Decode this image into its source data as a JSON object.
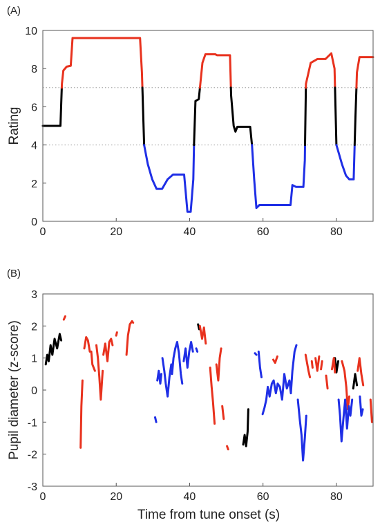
{
  "chart_data": [
    {
      "panel_label": "(A)",
      "type": "line",
      "xlabel": "",
      "ylabel": "Rating",
      "xlim": [
        0,
        90
      ],
      "ylim": [
        0,
        10
      ],
      "xticks": [
        0,
        20,
        40,
        60,
        80
      ],
      "yticks": [
        0,
        2,
        4,
        6,
        8,
        10
      ],
      "reference_lines": [
        7,
        4
      ],
      "reference_line_style": "dotted",
      "line_points": [
        [
          0,
          5
        ],
        [
          4.8,
          5
        ],
        [
          5.2,
          7.2
        ],
        [
          5.6,
          7.9
        ],
        [
          6.5,
          8.1
        ],
        [
          7.6,
          8.15
        ],
        [
          8.1,
          9.6
        ],
        [
          26.5,
          9.6
        ],
        [
          27.0,
          7.8
        ],
        [
          27.6,
          4.0
        ],
        [
          28.6,
          3.0
        ],
        [
          29.8,
          2.2
        ],
        [
          31,
          1.7
        ],
        [
          32.5,
          1.7
        ],
        [
          34,
          2.2
        ],
        [
          35.5,
          2.45
        ],
        [
          38.5,
          2.45
        ],
        [
          39,
          1.4
        ],
        [
          39.4,
          0.5
        ],
        [
          40.3,
          0.5
        ],
        [
          41,
          2.2
        ],
        [
          41.2,
          4.0
        ],
        [
          41.6,
          6.3
        ],
        [
          42.5,
          6.4
        ],
        [
          43.5,
          8.3
        ],
        [
          44.3,
          8.75
        ],
        [
          47,
          8.75
        ],
        [
          47.5,
          8.7
        ],
        [
          51,
          8.7
        ],
        [
          51.3,
          6.6
        ],
        [
          52,
          5.0
        ],
        [
          52.5,
          4.7
        ],
        [
          53,
          4.95
        ],
        [
          56.5,
          4.95
        ],
        [
          57,
          4.0
        ],
        [
          57.6,
          2.2
        ],
        [
          58.2,
          0.7
        ],
        [
          59,
          0.85
        ],
        [
          67.5,
          0.85
        ],
        [
          68,
          1.9
        ],
        [
          69,
          1.8
        ],
        [
          71,
          1.8
        ],
        [
          71.4,
          3.2
        ],
        [
          71.7,
          7.2
        ],
        [
          73,
          8.3
        ],
        [
          74.8,
          8.5
        ],
        [
          77,
          8.5
        ],
        [
          78.6,
          8.8
        ],
        [
          79.5,
          8.0
        ],
        [
          80,
          4.0
        ],
        [
          81.5,
          3.0
        ],
        [
          82.6,
          2.4
        ],
        [
          83.5,
          2.2
        ],
        [
          84.7,
          2.2
        ],
        [
          85.2,
          5.5
        ],
        [
          85.6,
          7.8
        ],
        [
          86.3,
          8.6
        ],
        [
          90,
          8.6
        ]
      ],
      "color_thresholds": {
        "high": 7,
        "low": 4
      },
      "series": [
        {
          "band": "high",
          "color": "#e8321e"
        },
        {
          "band": "middle",
          "color": "#000000"
        },
        {
          "band": "low",
          "color": "#1f2fe6"
        }
      ]
    },
    {
      "panel_label": "(B)",
      "type": "line",
      "xlabel": "Time from tune onset (s)",
      "ylabel": "Pupil diameter (z-score)",
      "xlim": [
        0,
        90
      ],
      "ylim": [
        -3,
        3
      ],
      "xticks": [
        0,
        20,
        40,
        60,
        80
      ],
      "yticks": [
        -3,
        -2,
        -1,
        0,
        1,
        2,
        3
      ],
      "series": [
        {
          "color": "#000000",
          "segments": [
            [
              [
                0.8,
                0.8
              ],
              [
                1.2,
                1.1
              ],
              [
                1.6,
                0.9
              ],
              [
                2.1,
                1.4
              ],
              [
                2.6,
                1.1
              ],
              [
                3.2,
                1.6
              ],
              [
                3.9,
                1.3
              ],
              [
                4.6,
                1.75
              ],
              [
                5.0,
                1.55
              ]
            ],
            [
              [
                42.3,
                2.05
              ],
              [
                42.6,
                1.9
              ]
            ],
            [
              [
                54.6,
                -1.7
              ],
              [
                55.0,
                -1.4
              ],
              [
                55.4,
                -1.75
              ],
              [
                55.8,
                -1.3
              ],
              [
                56.0,
                -0.6
              ]
            ],
            [
              [
                79.2,
                0.8
              ],
              [
                79.6,
                1.0
              ],
              [
                80.0,
                0.55
              ],
              [
                80.5,
                0.9
              ]
            ],
            [
              [
                84.6,
                0.05
              ],
              [
                85.1,
                0.5
              ],
              [
                85.6,
                0.15
              ]
            ]
          ]
        },
        {
          "color": "#e8321e",
          "segments": [
            [
              [
                5.7,
                2.2
              ],
              [
                6.1,
                2.3
              ]
            ],
            [
              [
                10.3,
                -1.8
              ],
              [
                10.5,
                -0.5
              ],
              [
                10.8,
                0.3
              ]
            ],
            [
              [
                11.3,
                1.3
              ],
              [
                11.8,
                1.65
              ],
              [
                12.3,
                1.55
              ],
              [
                12.8,
                1.2
              ]
            ],
            [
              [
                13.2,
                1.2
              ],
              [
                13.5,
                0.8
              ],
              [
                14.2,
                0.6
              ]
            ],
            [
              [
                14.6,
                1.4
              ],
              [
                15.0,
                1.0
              ],
              [
                15.4,
                0.4
              ],
              [
                15.8,
                -0.3
              ],
              [
                16.3,
                0.6
              ]
            ],
            [
              [
                16.5,
                1.1
              ],
              [
                17.0,
                1.45
              ],
              [
                17.6,
                0.9
              ],
              [
                18.1,
                1.5
              ],
              [
                18.6,
                1.6
              ],
              [
                19.0,
                1.4
              ]
            ],
            [
              [
                20.0,
                1.7
              ],
              [
                20.2,
                1.8
              ]
            ],
            [
              [
                22.8,
                1.1
              ],
              [
                23.2,
                1.7
              ],
              [
                23.7,
                2.05
              ],
              [
                24.3,
                2.15
              ],
              [
                24.6,
                2.1
              ]
            ],
            [
              [
                42.8,
                2.0
              ],
              [
                43.4,
                1.6
              ],
              [
                43.9,
                1.95
              ],
              [
                44.4,
                1.45
              ]
            ],
            [
              [
                45.6,
                0.7
              ],
              [
                46.0,
                0.1
              ],
              [
                46.4,
                -0.4
              ],
              [
                46.8,
                -1.05
              ]
            ],
            [
              [
                47.3,
                0.8
              ],
              [
                47.8,
                0.3
              ],
              [
                48.2,
                1.0
              ],
              [
                48.6,
                1.3
              ]
            ],
            [
              [
                48.9,
                -0.5
              ],
              [
                49.3,
                -0.9
              ]
            ],
            [
              [
                50.2,
                -1.75
              ],
              [
                50.5,
                -1.85
              ]
            ],
            [
              [
                62.8,
                0.95
              ],
              [
                63.3,
                0.85
              ],
              [
                63.9,
                1.05
              ]
            ],
            [
              [
                71.6,
                1.1
              ],
              [
                72.0,
                0.85
              ],
              [
                72.4,
                0.6
              ],
              [
                72.8,
                0.4
              ]
            ],
            [
              [
                73.3,
                0.9
              ],
              [
                73.5,
                0.7
              ]
            ],
            [
              [
                74.3,
                1.0
              ],
              [
                74.8,
                0.6
              ],
              [
                75.3,
                1.05
              ]
            ],
            [
              [
                75.8,
                0.65
              ],
              [
                76.1,
                0.9
              ]
            ],
            [
              [
                77.2,
                0.45
              ],
              [
                77.6,
                0.05
              ]
            ],
            [
              [
                78.8,
                0.65
              ],
              [
                79.3,
                1.0
              ],
              [
                79.6,
                0.55
              ]
            ],
            [
              [
                81.5,
                0.9
              ],
              [
                82.2,
                0.6
              ],
              [
                82.7,
                0.1
              ],
              [
                83.1,
                -0.6
              ],
              [
                83.5,
                -0.2
              ]
            ],
            [
              [
                85.8,
                0.6
              ],
              [
                86.3,
                1.0
              ],
              [
                86.8,
                0.5
              ],
              [
                87.3,
                0.15
              ]
            ],
            [
              [
                89.3,
                -0.3
              ],
              [
                89.7,
                -1.0
              ]
            ]
          ]
        },
        {
          "color": "#1f2fe6",
          "segments": [
            [
              [
                30.6,
                -0.85
              ],
              [
                30.9,
                -1.0
              ]
            ],
            [
              [
                31.2,
                0.3
              ],
              [
                31.6,
                0.6
              ],
              [
                32.0,
                0.2
              ],
              [
                32.3,
                0.5
              ]
            ],
            [
              [
                32.6,
                1.0
              ],
              [
                33.1,
                0.6
              ],
              [
                33.5,
                0.2
              ],
              [
                34.0,
                -0.2
              ],
              [
                34.5,
                0.4
              ],
              [
                35.0,
                0.8
              ]
            ],
            [
              [
                35.2,
                0.5
              ],
              [
                35.6,
                1.0
              ],
              [
                36.1,
                1.3
              ],
              [
                36.6,
                1.5
              ],
              [
                37.1,
                1.15
              ],
              [
                37.6,
                0.5
              ],
              [
                38.0,
                0.2
              ]
            ],
            [
              [
                38.4,
                0.9
              ],
              [
                38.9,
                1.3
              ],
              [
                39.4,
                0.7
              ],
              [
                39.9,
                1.2
              ],
              [
                40.4,
                1.5
              ],
              [
                40.9,
                1.2
              ]
            ],
            [
              [
                41.8,
                1.3
              ],
              [
                42.1,
                1.2
              ]
            ],
            [
              [
                57.8,
                1.15
              ],
              [
                58.2,
                1.1
              ]
            ],
            [
              [
                58.8,
                1.2
              ],
              [
                59.2,
                0.7
              ],
              [
                59.6,
                0.4
              ]
            ],
            [
              [
                59.9,
                -0.75
              ],
              [
                60.4,
                -0.55
              ],
              [
                60.9,
                -0.3
              ],
              [
                61.3,
                0.1
              ],
              [
                61.8,
                -0.2
              ],
              [
                62.4,
                0.2
              ],
              [
                62.9,
                0.3
              ],
              [
                63.5,
                -0.1
              ],
              [
                64.0,
                0.2
              ],
              [
                64.6,
                0.1
              ],
              [
                65.2,
                -0.3
              ],
              [
                65.8,
                0.5
              ],
              [
                66.5,
                0.05
              ],
              [
                67.2,
                0.3
              ],
              [
                67.6,
                -0.1
              ],
              [
                68.0,
                0.6
              ],
              [
                68.6,
                1.2
              ],
              [
                69.1,
                1.4
              ]
            ],
            [
              [
                69.5,
                -0.3
              ],
              [
                70.0,
                -0.9
              ],
              [
                70.5,
                -1.4
              ],
              [
                70.9,
                -2.2
              ],
              [
                71.4,
                -1.5
              ],
              [
                71.8,
                -0.8
              ]
            ],
            [
              [
                80.6,
                -0.3
              ],
              [
                81.0,
                -0.8
              ],
              [
                81.4,
                -1.6
              ],
              [
                81.9,
                -0.9
              ],
              [
                82.4,
                -0.3
              ],
              [
                82.9,
                -1.2
              ],
              [
                83.4,
                -0.5
              ],
              [
                83.8,
                -0.8
              ],
              [
                84.3,
                -0.3
              ]
            ],
            [
              [
                86.4,
                -0.2
              ],
              [
                86.8,
                -0.8
              ],
              [
                87.2,
                -0.6
              ]
            ]
          ]
        }
      ]
    }
  ]
}
